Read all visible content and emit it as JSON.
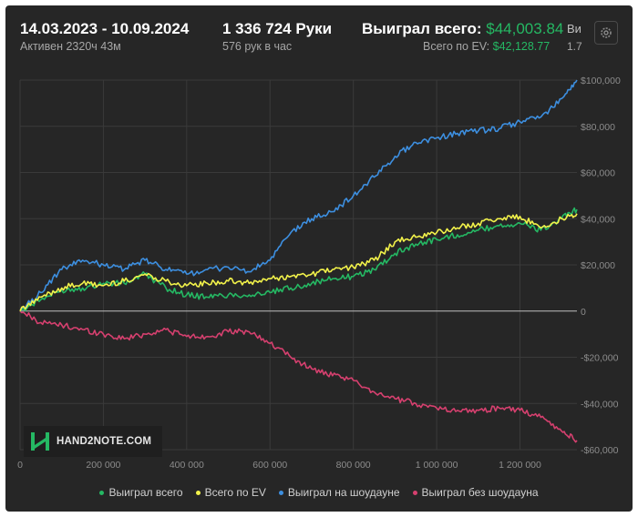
{
  "header": {
    "date_range": "14.03.2023 - 10.09.2024",
    "active_time": "Активен 2320ч 43м",
    "hands": "1 336 724 Руки",
    "hands_per_hour": "576 рук в час",
    "won_total_label": "Выиграл всего:",
    "won_total_value": "$44,003.84",
    "ev_total_label": "Всего по EV:",
    "ev_total_value": "$42,128.77",
    "cut_label_1": "Ви",
    "cut_label_2": "1.7"
  },
  "logo": {
    "text": "HAND2NOTE.COM"
  },
  "colors": {
    "won_total": "#25b863",
    "ev_total": "#f2f24a",
    "showdown": "#3d8fe0",
    "non_showdown": "#d6406f",
    "grid": "#3a3a3a",
    "zero_line": "#bdbdbd"
  },
  "chart_data": {
    "type": "line",
    "title": "",
    "xlabel": "",
    "ylabel": "",
    "xlim": [
      0,
      1336724
    ],
    "ylim": [
      -60000,
      100000
    ],
    "x_ticks": [
      0,
      200000,
      400000,
      600000,
      800000,
      1000000,
      1200000
    ],
    "x_tick_labels": [
      "0",
      "200 000",
      "400 000",
      "600 000",
      "800 000",
      "1 000 000",
      "1 200 000"
    ],
    "y_ticks": [
      100000,
      80000,
      60000,
      40000,
      20000,
      0,
      -20000,
      -40000,
      -60000
    ],
    "y_tick_labels": [
      "$100,000",
      "$80,000",
      "$60,000",
      "$40,000",
      "$20,000",
      "0",
      "-$20,000",
      "-$40,000",
      "-$60,000"
    ],
    "grid": true,
    "legend_position": "bottom",
    "series": [
      {
        "name": "Выиграл всего",
        "color_key": "won_total",
        "x": [
          0,
          50000,
          100000,
          150000,
          200000,
          250000,
          300000,
          350000,
          400000,
          450000,
          500000,
          550000,
          600000,
          650000,
          700000,
          750000,
          800000,
          850000,
          900000,
          950000,
          1000000,
          1050000,
          1100000,
          1150000,
          1200000,
          1250000,
          1300000,
          1336724
        ],
        "values": [
          0,
          5000,
          9000,
          10000,
          12000,
          12000,
          16000,
          10000,
          7000,
          6000,
          7000,
          7000,
          8000,
          10000,
          12000,
          14000,
          15000,
          18000,
          25000,
          29000,
          31000,
          33000,
          35000,
          37000,
          38000,
          35000,
          40000,
          44004
        ]
      },
      {
        "name": "Всего по EV",
        "color_key": "ev_total",
        "x": [
          0,
          50000,
          100000,
          150000,
          200000,
          250000,
          300000,
          350000,
          400000,
          450000,
          500000,
          550000,
          600000,
          650000,
          700000,
          750000,
          800000,
          850000,
          900000,
          950000,
          1000000,
          1050000,
          1100000,
          1150000,
          1200000,
          1250000,
          1300000,
          1336724
        ],
        "values": [
          0,
          6000,
          10000,
          12000,
          11000,
          13000,
          16000,
          13000,
          11000,
          12000,
          13000,
          12000,
          14000,
          15000,
          16000,
          18000,
          19000,
          22000,
          30000,
          32000,
          34000,
          36000,
          38000,
          40000,
          41000,
          36000,
          40000,
          42129
        ]
      },
      {
        "name": "Выиграл на шоудауне",
        "color_key": "showdown",
        "x": [
          0,
          50000,
          100000,
          150000,
          200000,
          250000,
          300000,
          350000,
          400000,
          450000,
          500000,
          550000,
          600000,
          650000,
          700000,
          750000,
          800000,
          850000,
          900000,
          950000,
          1000000,
          1050000,
          1100000,
          1150000,
          1200000,
          1250000,
          1300000,
          1336724
        ],
        "values": [
          0,
          8000,
          18000,
          22000,
          20000,
          18000,
          22000,
          18000,
          16000,
          18000,
          19000,
          17000,
          22000,
          34000,
          40000,
          43000,
          50000,
          58000,
          67000,
          73000,
          75000,
          77000,
          78000,
          79000,
          82000,
          84000,
          92000,
          100000
        ]
      },
      {
        "name": "Выиграл без шоудауна",
        "color_key": "non_showdown",
        "x": [
          0,
          50000,
          100000,
          150000,
          200000,
          250000,
          300000,
          350000,
          400000,
          450000,
          500000,
          550000,
          600000,
          650000,
          700000,
          750000,
          800000,
          850000,
          900000,
          950000,
          1000000,
          1050000,
          1100000,
          1150000,
          1200000,
          1250000,
          1300000,
          1336724
        ],
        "values": [
          0,
          -5000,
          -6000,
          -8000,
          -10000,
          -12000,
          -10000,
          -8000,
          -11000,
          -11000,
          -9000,
          -9000,
          -14000,
          -20000,
          -25000,
          -28000,
          -30000,
          -35000,
          -38000,
          -40000,
          -42000,
          -43000,
          -43000,
          -42000,
          -43000,
          -46000,
          -52000,
          -56000
        ]
      }
    ]
  }
}
